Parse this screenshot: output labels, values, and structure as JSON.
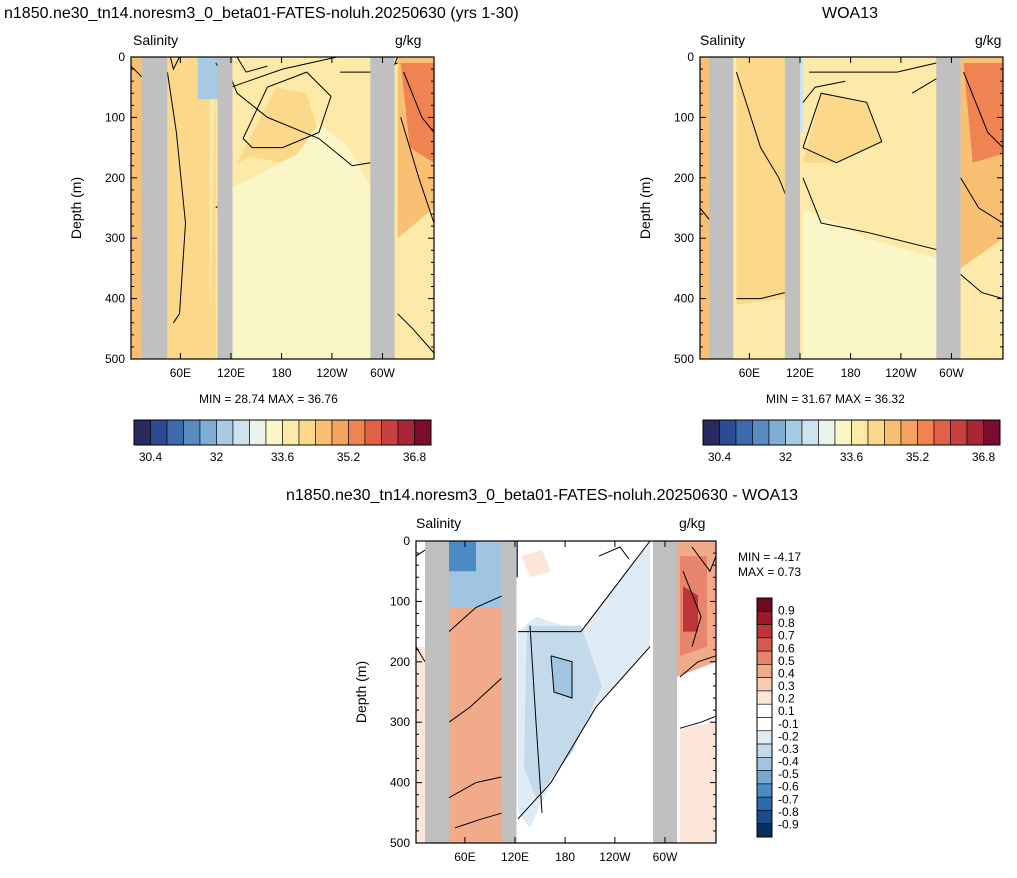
{
  "figure": {
    "panels": [
      {
        "title": "n1850.ne30_tn14.noresm3_0_beta01-FATES-noluh.20250630 (yrs 1-30)",
        "variable": "Salinity",
        "units": "g/kg",
        "min_max": "MIN =  28.74  MAX =  36.76"
      },
      {
        "title": "WOA13",
        "variable": "Salinity",
        "units": "g/kg",
        "min_max": "MIN =  31.67  MAX =  36.32"
      },
      {
        "title": "n1850.ne30_tn14.noresm3_0_beta01-FATES-noluh.20250630 - WOA13",
        "variable": "Salinity",
        "units": "g/kg",
        "min_label": "MIN =  -4.17",
        "max_label": "MAX =   0.73"
      }
    ]
  },
  "chart_data": [
    {
      "type": "heatmap",
      "title": "n1850.ne30_tn14.noresm3_0_beta01-FATES-noluh.20250630 (yrs 1-30)",
      "ylabel": "Depth (m)",
      "ylim": [
        500,
        0
      ],
      "yticks": [
        "0",
        "100",
        "200",
        "300",
        "400",
        "500"
      ],
      "xticks": [
        "60E",
        "120E",
        "180",
        "120W",
        "60W"
      ],
      "min": 28.74,
      "max": 36.76,
      "colorbar_ticks": [
        "30.4",
        "32",
        "33.6",
        "35.2",
        "36.8"
      ]
    },
    {
      "type": "heatmap",
      "title": "WOA13",
      "ylabel": "Depth (m)",
      "ylim": [
        500,
        0
      ],
      "yticks": [
        "0",
        "100",
        "200",
        "300",
        "400",
        "500"
      ],
      "xticks": [
        "60E",
        "120E",
        "180",
        "120W",
        "60W"
      ],
      "min": 31.67,
      "max": 36.32,
      "colorbar_ticks": [
        "30.4",
        "32",
        "33.6",
        "35.2",
        "36.8"
      ]
    },
    {
      "type": "heatmap",
      "title": "n1850.ne30_tn14.noresm3_0_beta01-FATES-noluh.20250630 - WOA13",
      "ylabel": "Depth (m)",
      "ylim": [
        500,
        0
      ],
      "yticks": [
        "0",
        "100",
        "200",
        "300",
        "400",
        "500"
      ],
      "xticks": [
        "60E",
        "120E",
        "180",
        "120W",
        "60W"
      ],
      "min": -4.17,
      "max": 0.73,
      "colorbar_ticks": [
        "0.9",
        "0.8",
        "0.7",
        "0.6",
        "0.5",
        "0.4",
        "0.3",
        "0.2",
        "0.1",
        "-0.1",
        "-0.2",
        "-0.3",
        "-0.4",
        "-0.5",
        "-0.6",
        "-0.7",
        "-0.8",
        "-0.9"
      ]
    }
  ],
  "colors": {
    "land_mask": "#c0c0c0",
    "abs_palette": [
      "#282a60",
      "#2e4a93",
      "#3d6aad",
      "#5a8cc2",
      "#7eaed4",
      "#a6cbe3",
      "#cde3ed",
      "#eaf3ec",
      "#fbf6c8",
      "#fdeaa9",
      "#fcd88a",
      "#f9c074",
      "#f5a360",
      "#ef8352",
      "#e06147",
      "#c9413e",
      "#a82636",
      "#7c0c2c"
    ],
    "diff_palette": [
      "#07305f",
      "#184d8c",
      "#2d6aaf",
      "#4b8ac2",
      "#76a8d2",
      "#a0c4e1",
      "#c3daeb",
      "#e0ecf5",
      "#ffffff",
      "#ffffff",
      "#fbe6d9",
      "#f8cbb2",
      "#f1ab8a",
      "#e6856b",
      "#d65a4f",
      "#bd3439",
      "#9a1a2c",
      "#6c0b1f"
    ]
  }
}
